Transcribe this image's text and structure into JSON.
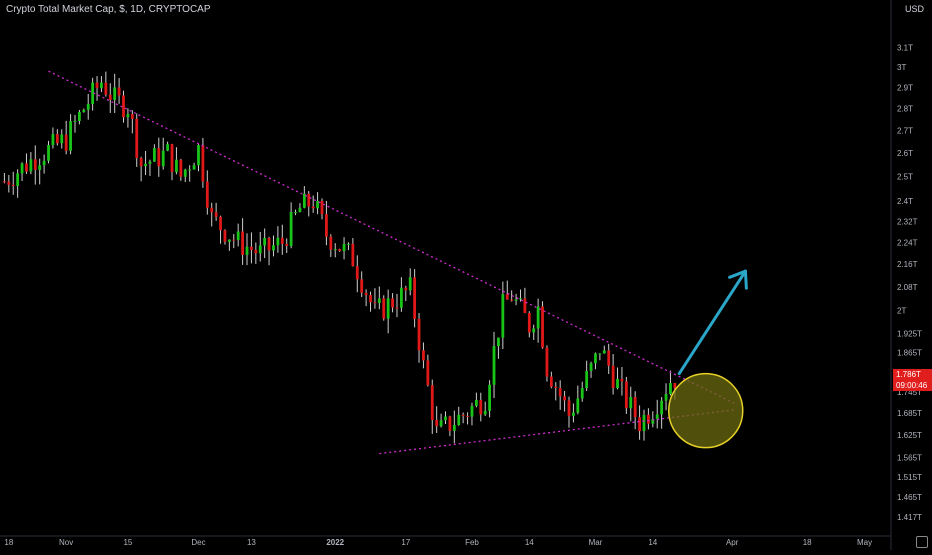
{
  "header": {
    "title": "Crypto Total Market Cap, $, 1D, CRYPTOCAP",
    "currency": "USD"
  },
  "last_price": {
    "value": "1.786T",
    "countdown": "09:00:46"
  },
  "colors": {
    "background": "#000000",
    "up_candle": "#19c419",
    "down_candle": "#e01818",
    "wick": "#cfcfcf",
    "trendline": "#d02cd0",
    "arrow": "#2aa6c8",
    "circle_fill": "#6b6b10",
    "circle_stroke": "#e6d028",
    "axis_text": "#b2b5be"
  },
  "chart_data": {
    "type": "candlestick",
    "title": "Crypto Total Market Cap, $, 1D, CRYPTOCAP",
    "y_scale": "log",
    "ylim": [
      1.41,
      3.3
    ],
    "y_ticks": [
      "3.1T",
      "3T",
      "2.9T",
      "2.8T",
      "2.7T",
      "2.6T",
      "2.5T",
      "2.4T",
      "2.32T",
      "2.24T",
      "2.16T",
      "2.08T",
      "2T",
      "1.925T",
      "1.865T",
      "1.805T",
      "1.745T",
      "1.685T",
      "1.625T",
      "1.565T",
      "1.515T",
      "1.465T",
      "1.417T"
    ],
    "y_tick_values": [
      3.1,
      3.0,
      2.9,
      2.8,
      2.7,
      2.6,
      2.5,
      2.4,
      2.32,
      2.24,
      2.16,
      2.08,
      2.0,
      1.925,
      1.865,
      1.805,
      1.745,
      1.685,
      1.625,
      1.565,
      1.515,
      1.465,
      1.417
    ],
    "x_ticks": [
      "18",
      "Nov",
      "15",
      "Dec",
      "13",
      "2022",
      "17",
      "Feb",
      "14",
      "Mar",
      "14",
      "Apr",
      "18",
      "May"
    ],
    "x_tick_dates": [
      "2021-10-18",
      "2021-11-01",
      "2021-11-15",
      "2021-12-01",
      "2021-12-13",
      "2022-01-01",
      "2022-01-17",
      "2022-02-01",
      "2022-02-14",
      "2022-03-01",
      "2022-03-14",
      "2022-04-01",
      "2022-04-18",
      "2022-05-01"
    ],
    "x_range": [
      "2021-10-17",
      "2022-05-07"
    ],
    "closes": [
      {
        "date": "2021-10-18",
        "close": 2.48
      },
      {
        "date": "2021-10-25",
        "close": 2.58
      },
      {
        "date": "2021-11-01",
        "close": 2.66
      },
      {
        "date": "2021-11-05",
        "close": 2.8
      },
      {
        "date": "2021-11-09",
        "close": 2.93
      },
      {
        "date": "2021-11-12",
        "close": 2.84
      },
      {
        "date": "2021-11-15",
        "close": 2.81
      },
      {
        "date": "2021-11-18",
        "close": 2.55
      },
      {
        "date": "2021-11-24",
        "close": 2.6
      },
      {
        "date": "2021-11-27",
        "close": 2.5
      },
      {
        "date": "2021-12-01",
        "close": 2.62
      },
      {
        "date": "2021-12-04",
        "close": 2.33
      },
      {
        "date": "2021-12-10",
        "close": 2.24
      },
      {
        "date": "2021-12-15",
        "close": 2.2
      },
      {
        "date": "2021-12-20",
        "close": 2.24
      },
      {
        "date": "2021-12-24",
        "close": 2.37
      },
      {
        "date": "2021-12-27",
        "close": 2.4
      },
      {
        "date": "2021-12-30",
        "close": 2.27
      },
      {
        "date": "2022-01-05",
        "close": 2.18
      },
      {
        "date": "2022-01-10",
        "close": 1.99
      },
      {
        "date": "2022-01-14",
        "close": 2.03
      },
      {
        "date": "2022-01-18",
        "close": 2.07
      },
      {
        "date": "2022-01-21",
        "close": 1.82
      },
      {
        "date": "2022-01-24",
        "close": 1.63
      },
      {
        "date": "2022-01-30",
        "close": 1.68
      },
      {
        "date": "2022-02-04",
        "close": 1.73
      },
      {
        "date": "2022-02-08",
        "close": 2.01
      },
      {
        "date": "2022-02-10",
        "close": 2.05
      },
      {
        "date": "2022-02-14",
        "close": 1.95
      },
      {
        "date": "2022-02-16",
        "close": 2.01
      },
      {
        "date": "2022-02-18",
        "close": 1.82
      },
      {
        "date": "2022-02-23",
        "close": 1.68
      },
      {
        "date": "2022-02-25",
        "close": 1.73
      },
      {
        "date": "2022-03-01",
        "close": 1.84
      },
      {
        "date": "2022-03-02",
        "close": 1.88
      },
      {
        "date": "2022-03-07",
        "close": 1.74
      },
      {
        "date": "2022-03-11",
        "close": 1.66
      },
      {
        "date": "2022-03-14",
        "close": 1.7
      },
      {
        "date": "2022-03-18",
        "close": 1.78
      },
      {
        "date": "2022-03-19",
        "close": 1.786
      }
    ],
    "annotations": [
      {
        "type": "descending-trendline",
        "from": {
          "date": "2021-10-28",
          "value": 2.98
        },
        "to": {
          "date": "2022-04-02",
          "value": 1.71
        }
      },
      {
        "type": "ascending-trendline",
        "from": {
          "date": "2022-01-11",
          "value": 1.575
        },
        "to": {
          "date": "2022-04-02",
          "value": 1.695
        }
      },
      {
        "type": "highlight-circle",
        "center": {
          "date": "2022-03-26",
          "value": 1.692
        }
      },
      {
        "type": "breakout-arrow",
        "from": {
          "date": "2022-03-20",
          "value": 1.8
        },
        "to": {
          "date": "2022-04-04",
          "value": 2.135
        }
      }
    ]
  }
}
